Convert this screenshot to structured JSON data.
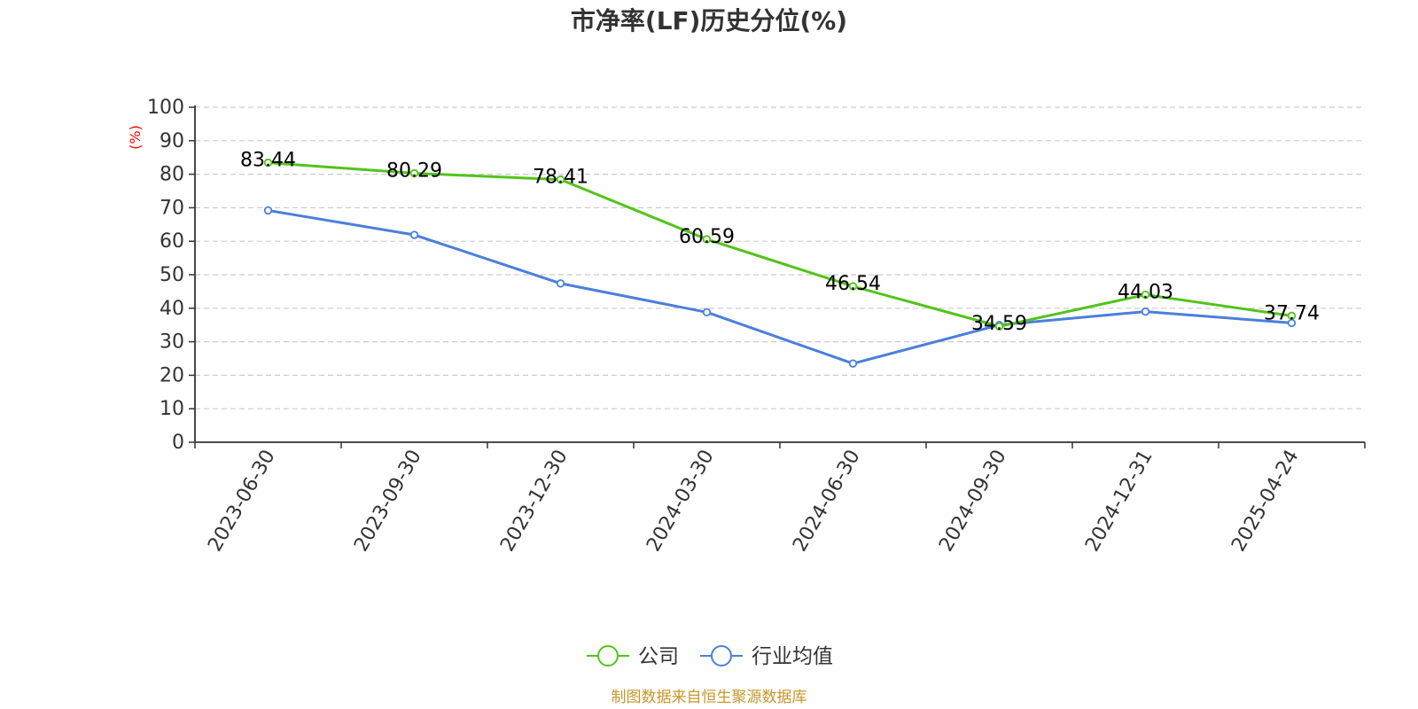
{
  "chart_data": {
    "type": "line",
    "title": "市净率(LF)历史分位(%)",
    "ylabel": "(%)",
    "xlabel": "",
    "ylim": [
      0,
      100
    ],
    "yticks": [
      "0",
      "10",
      "20",
      "30",
      "40",
      "50",
      "60",
      "70",
      "80",
      "90",
      "100"
    ],
    "categories": [
      "2023-06-30",
      "2023-09-30",
      "2023-12-30",
      "2024-03-30",
      "2024-06-30",
      "2024-09-30",
      "2024-12-31",
      "2025-04-24"
    ],
    "series": [
      {
        "name": "公司",
        "color": "#52c41a",
        "values": [
          83.44,
          80.29,
          78.41,
          60.59,
          46.54,
          34.59,
          44.03,
          37.74
        ],
        "labels": [
          "83.44",
          "80.29",
          "78.41",
          "60.59",
          "46.54",
          "34.59",
          "44.03",
          "37.74"
        ]
      },
      {
        "name": "行业均值",
        "color": "#4a7fdc",
        "values": [
          69.2,
          61.9,
          47.4,
          38.8,
          23.5,
          35.0,
          39.0,
          35.6
        ]
      }
    ],
    "grid": true,
    "legend_position": "bottom-center"
  },
  "footer": {
    "source": "制图数据来自恒生聚源数据库"
  }
}
